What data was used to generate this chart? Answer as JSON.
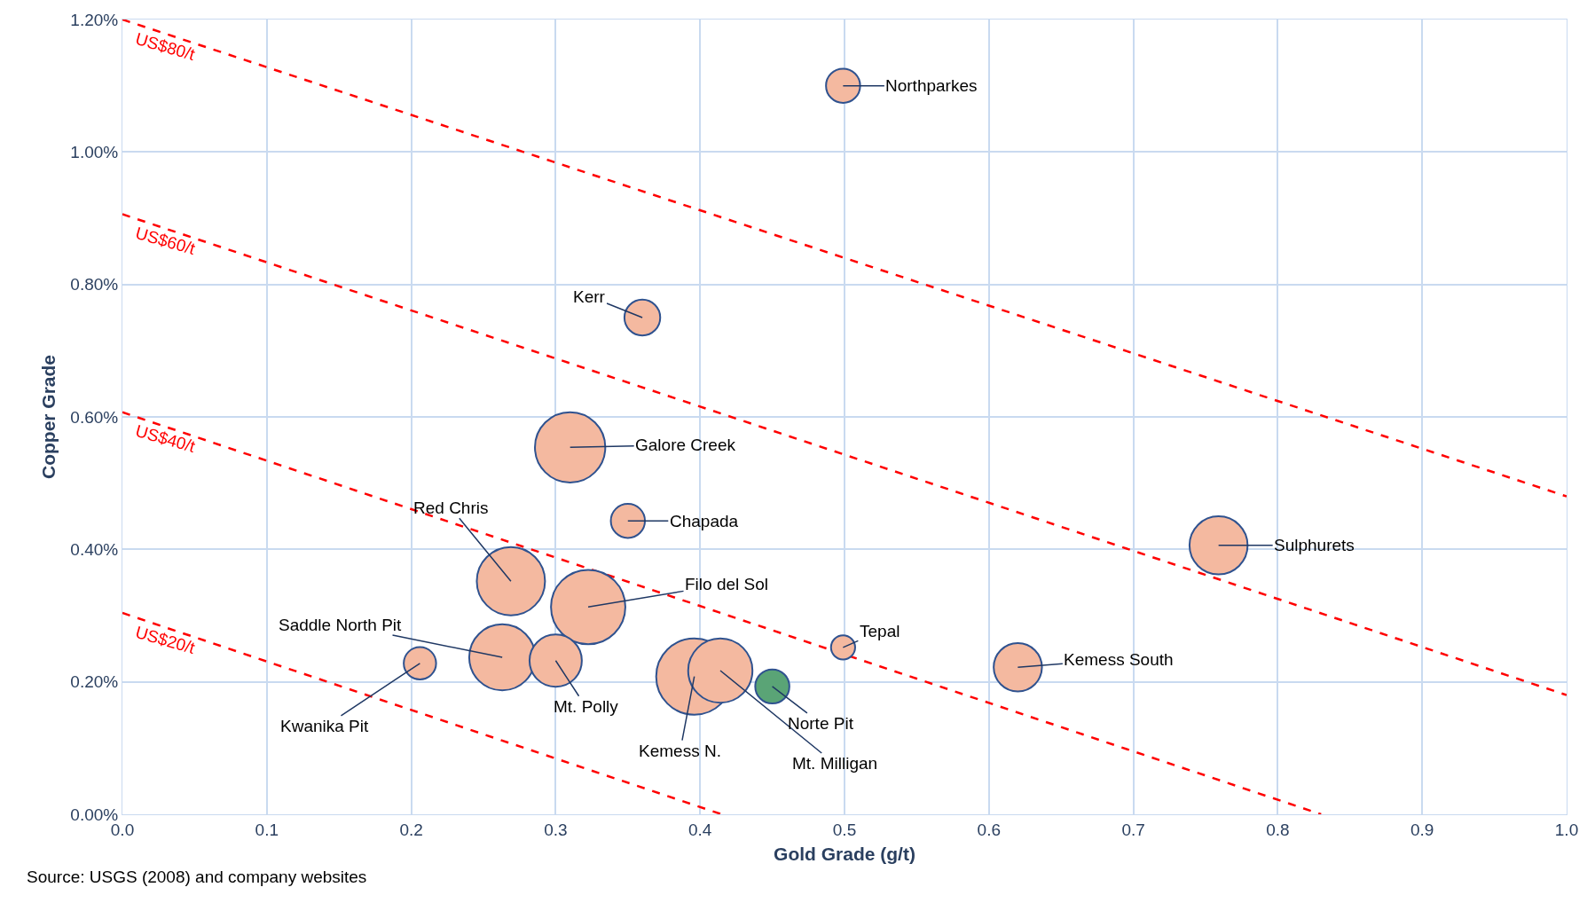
{
  "chart_data": {
    "type": "bubble",
    "xlabel": "Gold Grade (g/t)",
    "ylabel": "Copper Grade",
    "x": [
      0.499,
      0.36,
      0.31,
      0.35,
      0.269,
      0.3225,
      0.263,
      0.3,
      0.206,
      0.396,
      0.414,
      0.45,
      0.499,
      0.62,
      0.759
    ],
    "values": [
      1.1,
      0.75,
      0.554,
      0.443,
      0.352,
      0.313,
      0.237,
      0.232,
      0.228,
      0.208,
      0.217,
      0.193,
      0.252,
      0.222,
      0.406
    ],
    "sizes": [
      0.2,
      0.22,
      0.85,
      0.2,
      0.8,
      0.95,
      0.75,
      0.47,
      0.18,
      1,
      0.71,
      0.2,
      0.1,
      0.4,
      0.58
    ],
    "colors": [
      "#f4b9a0",
      "#f4b9a0",
      "#f4b9a0",
      "#f4b9a0",
      "#f4b9a0",
      "#f4b9a0",
      "#f4b9a0",
      "#f4b9a0",
      "#f4b9a0",
      "#f4b9a0",
      "#f4b9a0",
      "#5aa476",
      "#f4b9a0",
      "#f4b9a0",
      "#f4b9a0"
    ],
    "series": [
      {
        "name": "US$80/t",
        "type": "line",
        "color": "#ff0000",
        "x": [
          0,
          1
        ],
        "values": [
          1.2,
          0.48
        ],
        "line_style": "dashed"
      },
      {
        "name": "US$60/t",
        "type": "line",
        "color": "#ff0000",
        "x": [
          0,
          1
        ],
        "values": [
          0.906,
          0.18
        ],
        "line_style": "dashed"
      },
      {
        "name": "US$40/t",
        "type": "line",
        "color": "#ff0000",
        "x": [
          0,
          0.83
        ],
        "values": [
          0.607,
          0
        ],
        "line_style": "dashed"
      },
      {
        "name": "US$20/t",
        "type": "line",
        "color": "#ff0000",
        "x": [
          0,
          0.415
        ],
        "values": [
          0.304,
          0
        ],
        "line_style": "dashed"
      }
    ],
    "annotations": [
      {
        "text": "Northparkes",
        "x": 0.499,
        "y": 1.1
      },
      {
        "text": "Kerr",
        "x": 0.36,
        "y": 0.75
      },
      {
        "text": "Galore Creek",
        "x": 0.31,
        "y": 0.554
      },
      {
        "text": "Chapada",
        "x": 0.35,
        "y": 0.443
      },
      {
        "text": "Red Chris",
        "x": 0.269,
        "y": 0.352
      },
      {
        "text": "Filo del Sol",
        "x": 0.3225,
        "y": 0.313
      },
      {
        "text": "Saddle North Pit",
        "x": 0.263,
        "y": 0.237
      },
      {
        "text": "Mt. Polly",
        "x": 0.3,
        "y": 0.232
      },
      {
        "text": "Kwanika Pit",
        "x": 0.206,
        "y": 0.228
      },
      {
        "text": "Kemess N.",
        "x": 0.396,
        "y": 0.208
      },
      {
        "text": "Mt. Milligan",
        "x": 0.414,
        "y": 0.217
      },
      {
        "text": "Norte Pit",
        "x": 0.45,
        "y": 0.193
      },
      {
        "text": "Tepal",
        "x": 0.499,
        "y": 0.252
      },
      {
        "text": "Kemess South",
        "x": 0.62,
        "y": 0.222
      },
      {
        "text": "Sulphurets",
        "x": 0.759,
        "y": 0.406
      },
      "Source: USGS (2008) and company websites"
    ],
    "xlim": [
      0,
      1
    ],
    "xticks": [
      {
        "value": 0,
        "label": "0.0"
      },
      0.1,
      0.2,
      0.3,
      0.4,
      0.5,
      0.6,
      0.7,
      0.8,
      0.9,
      {
        "value": 1,
        "label": "1.0"
      }
    ],
    "ylim": [
      0,
      1.2
    ],
    "yticks": [
      {
        "value": 0,
        "label": "0.00%"
      },
      {
        "value": 0.2,
        "label": "0.20%"
      },
      {
        "value": 0.4,
        "label": "0.40%"
      },
      {
        "value": 0.6,
        "label": "0.60%"
      },
      {
        "value": 0.8,
        "label": "0.80%"
      },
      {
        "value": 1.0,
        "label": "1.00%"
      },
      {
        "value": 1.2,
        "label": "1.20%"
      }
    ],
    "grid": true
  }
}
